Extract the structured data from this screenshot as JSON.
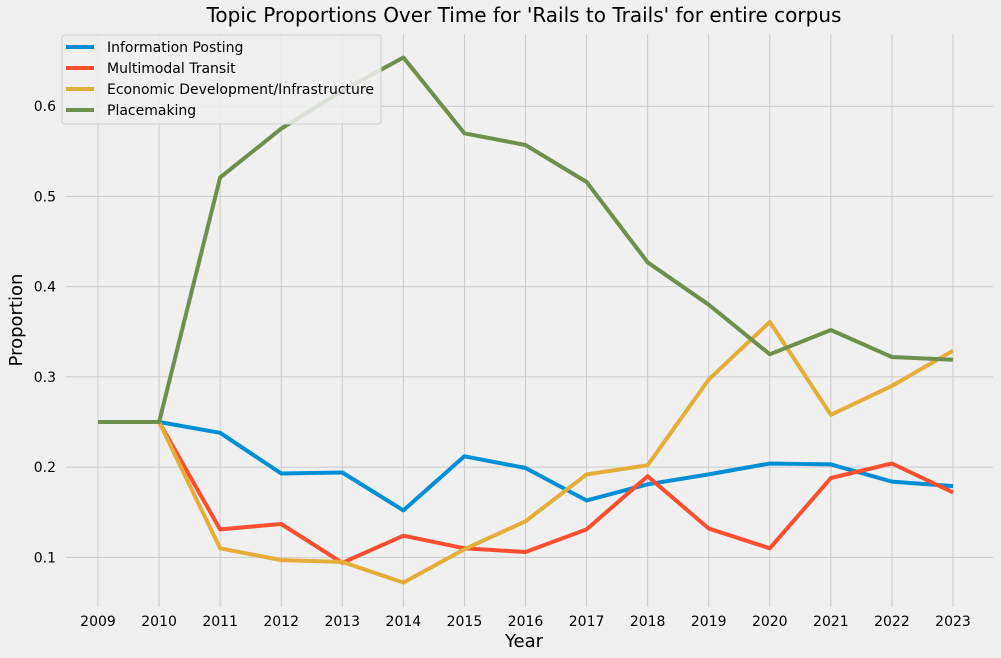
{
  "chart_data": {
    "type": "line",
    "title": "Topic Proportions Over Time for 'Rails to Trails' for entire corpus",
    "xlabel": "Year",
    "ylabel": "Proportion",
    "x": [
      "2009",
      "2010",
      "2011",
      "2012",
      "2013",
      "2014",
      "2015",
      "2016",
      "2017",
      "2018",
      "2019",
      "2020",
      "2021",
      "2022",
      "2023"
    ],
    "yticks": [
      "0.1",
      "0.2",
      "0.3",
      "0.4",
      "0.5",
      "0.6"
    ],
    "ylim": [
      0.045,
      0.68
    ],
    "grid": true,
    "legend_position": "top-left",
    "series": [
      {
        "name": "Information Posting",
        "color": "#008fd5",
        "values": [
          0.25,
          0.25,
          0.238,
          0.193,
          0.194,
          0.152,
          0.212,
          0.199,
          0.163,
          0.181,
          0.192,
          0.204,
          0.203,
          0.184,
          0.179
        ]
      },
      {
        "name": "Multimodal Transit",
        "color": "#fc4f30",
        "values": [
          0.25,
          0.25,
          0.131,
          0.137,
          0.094,
          0.124,
          0.11,
          0.106,
          0.131,
          0.19,
          0.132,
          0.11,
          0.188,
          0.204,
          0.172
        ]
      },
      {
        "name": "Economic Development/Infrastructure",
        "color": "#e5ae38",
        "values": [
          0.25,
          0.25,
          0.11,
          0.097,
          0.095,
          0.072,
          0.109,
          0.14,
          0.192,
          0.202,
          0.297,
          0.361,
          0.258,
          0.29,
          0.329
        ]
      },
      {
        "name": "Placemaking",
        "color": "#6d904f",
        "values": [
          0.25,
          0.25,
          0.521,
          0.575,
          0.617,
          0.654,
          0.57,
          0.557,
          0.516,
          0.427,
          0.38,
          0.325,
          0.352,
          0.322,
          0.319
        ]
      }
    ]
  }
}
